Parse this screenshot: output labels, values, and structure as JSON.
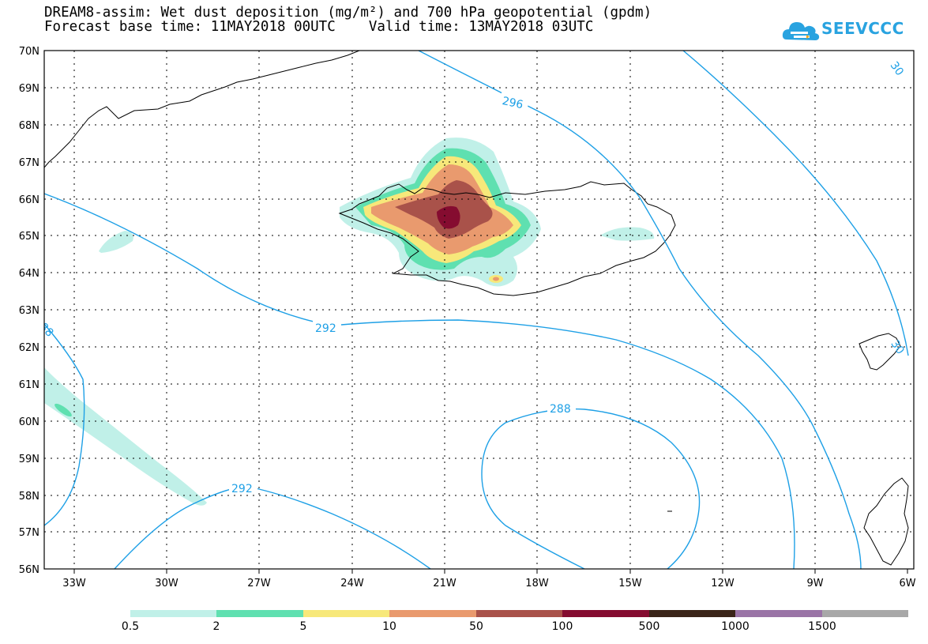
{
  "title": {
    "line1": "DREAM8-assim: Wet dust deposition (mg/m²) and 700 hPa geopotential (gpdm)",
    "line2": "Forecast base time: 11MAY2018 00UTC    Valid time: 13MAY2018 03UTC"
  },
  "logo": {
    "text": "SEEVCCC",
    "icon": "cloud-logo-icon",
    "color": "#29a3e0"
  },
  "map": {
    "lat_labels": [
      "70N",
      "69N",
      "68N",
      "67N",
      "66N",
      "65N",
      "64N",
      "63N",
      "62N",
      "61N",
      "60N",
      "59N",
      "58N",
      "57N",
      "56N"
    ],
    "lon_labels": [
      "33W",
      "30W",
      "27W",
      "24W",
      "21W",
      "18W",
      "15W",
      "12W",
      "9W",
      "6W"
    ],
    "contour_labels": [
      {
        "text": "296"
      },
      {
        "text": "292"
      },
      {
        "text": "292"
      },
      {
        "text": "288"
      },
      {
        "text": "88"
      },
      {
        "text": "30"
      },
      {
        "text": "30"
      }
    ],
    "contour_color": "#1ea0e6"
  },
  "legend": {
    "colors": [
      "#c0f0e8",
      "#5fe0b0",
      "#f7e87a",
      "#e99a6e",
      "#a9524a",
      "#850c30",
      "#3a2418",
      "#9a74a6",
      "#a8a8a8"
    ],
    "labels": [
      "0.5",
      "2",
      "5",
      "10",
      "50",
      "100",
      "500",
      "1000",
      "1500"
    ]
  }
}
